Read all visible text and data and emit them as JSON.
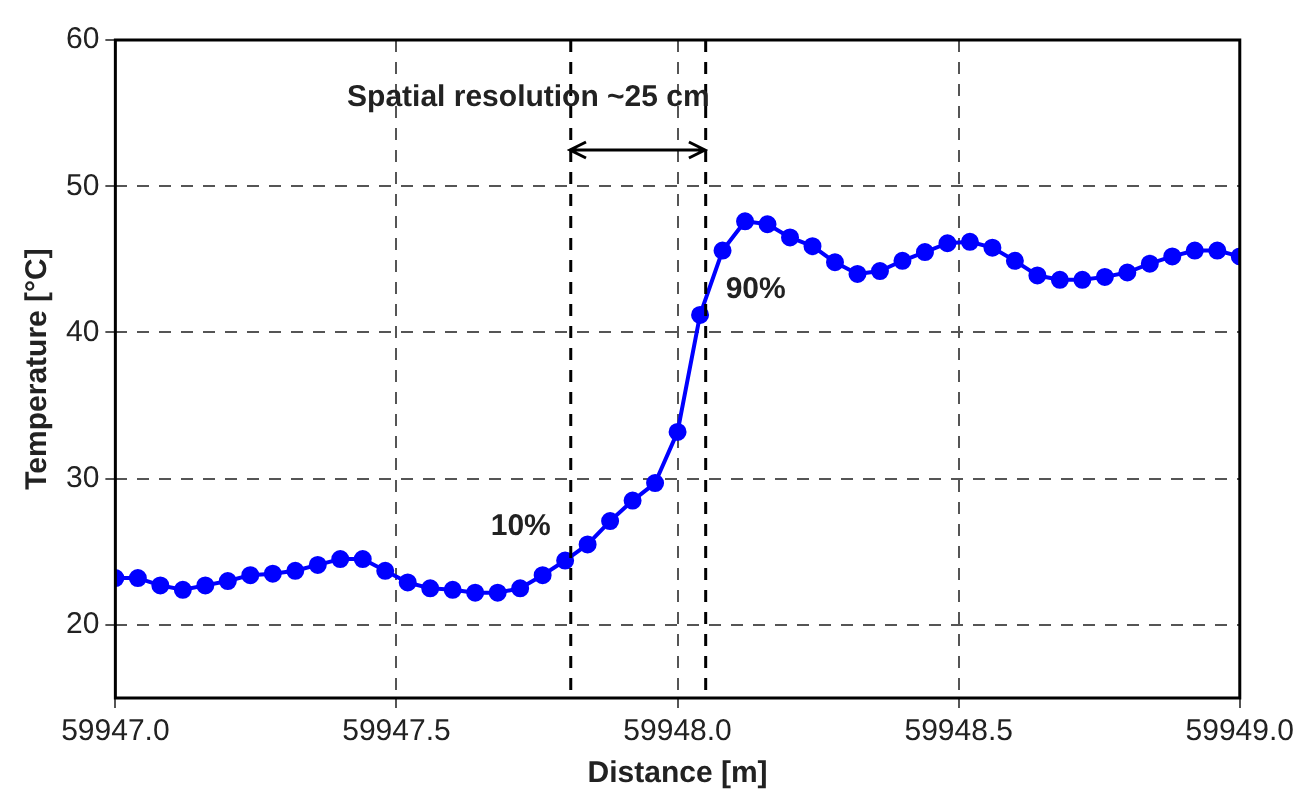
{
  "chart_data": {
    "type": "line",
    "xlabel": "Distance [m]",
    "ylabel": "Temperature [°C]",
    "x": [
      59947.0,
      59947.04,
      59947.08,
      59947.12,
      59947.16,
      59947.2,
      59947.24,
      59947.28,
      59947.32,
      59947.36,
      59947.4,
      59947.44,
      59947.48,
      59947.52,
      59947.56,
      59947.6,
      59947.64,
      59947.68,
      59947.72,
      59947.76,
      59947.8,
      59947.84,
      59947.88,
      59947.92,
      59947.96,
      59948.0,
      59948.04,
      59948.08,
      59948.12,
      59948.16,
      59948.2,
      59948.24,
      59948.28,
      59948.32,
      59948.36,
      59948.4,
      59948.44,
      59948.48,
      59948.52,
      59948.56,
      59948.6,
      59948.64,
      59948.68,
      59948.72,
      59948.76,
      59948.8,
      59948.84,
      59948.88,
      59948.92,
      59948.96,
      59949.0
    ],
    "series": [
      {
        "color": "#0000ff",
        "values": [
          23.2,
          23.2,
          22.7,
          22.4,
          22.7,
          23.0,
          23.4,
          23.5,
          23.7,
          24.1,
          24.5,
          24.5,
          23.7,
          22.9,
          22.5,
          22.4,
          22.2,
          22.2,
          22.5,
          23.4,
          24.4,
          25.5,
          27.1,
          28.5,
          29.7,
          33.2,
          41.2,
          45.6,
          47.6,
          47.4,
          46.5,
          45.9,
          44.8,
          44.0,
          44.2,
          44.9,
          45.5,
          46.1,
          46.2,
          45.8,
          44.9,
          43.9,
          43.6,
          43.6,
          43.8,
          44.1,
          44.7,
          45.2,
          45.6,
          45.6,
          45.2
        ]
      }
    ],
    "xlim": [
      59947.0,
      59949.0
    ],
    "xticks": [
      {
        "value": 59947.0,
        "label": "59947.0"
      },
      {
        "value": 59947.5,
        "label": "59947.5"
      },
      {
        "value": 59948.0,
        "label": "59948.0"
      },
      {
        "value": 59948.5,
        "label": "59948.5"
      },
      {
        "value": 59949.0,
        "label": "59949.0"
      }
    ],
    "ylim": [
      15,
      60
    ],
    "yticks": [
      20,
      30,
      40,
      50,
      60
    ],
    "grid": true,
    "marker": "circle",
    "line_style": "solid",
    "ref_lines": [
      {
        "axis": "x",
        "value": 59947.81,
        "color": "#000000",
        "line_style": "dashed"
      },
      {
        "axis": "x",
        "value": 59948.05,
        "color": "#000000",
        "line_style": "dashed"
      }
    ],
    "annotations": [
      {
        "text": "Spatial resolution ~25 cm",
        "x": 59948.05,
        "y": 52.5
      },
      "10%",
      "90%"
    ]
  }
}
